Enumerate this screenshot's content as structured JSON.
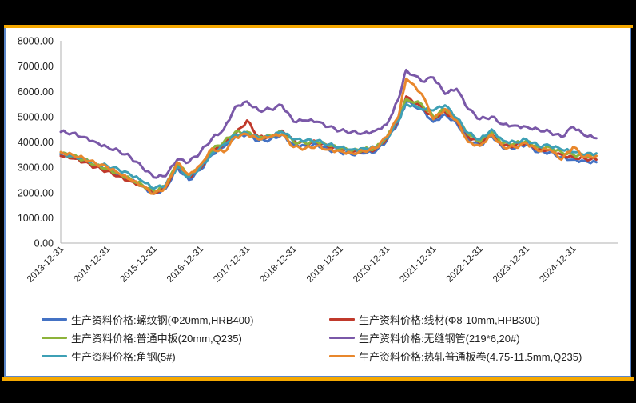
{
  "frame": {
    "accent_bar_color": "#f5a800",
    "border_color": "#5b86c8"
  },
  "chart_data": {
    "type": "line",
    "title": "",
    "xlabel": "",
    "ylabel": "",
    "ylim": [
      0,
      8000
    ],
    "yticks": [
      "0.00",
      "1000.00",
      "2000.00",
      "3000.00",
      "4000.00",
      "5000.00",
      "6000.00",
      "7000.00",
      "8000.00"
    ],
    "xticks": [
      "2013-12-31",
      "2014-12-31",
      "2015-12-31",
      "2016-12-31",
      "2017-12-31",
      "2018-12-31",
      "2019-12-31",
      "2020-12-31",
      "2021-12-31",
      "2022-12-31",
      "2023-12-31",
      "2024-12-31"
    ],
    "grid": false,
    "legend_position": "bottom",
    "x": [
      "2013-12",
      "2014-03",
      "2014-06",
      "2014-09",
      "2014-12",
      "2015-03",
      "2015-06",
      "2015-09",
      "2015-12",
      "2016-03",
      "2016-06",
      "2016-09",
      "2016-12",
      "2017-03",
      "2017-06",
      "2017-09",
      "2017-12",
      "2018-03",
      "2018-06",
      "2018-09",
      "2018-12",
      "2019-03",
      "2019-06",
      "2019-09",
      "2019-12",
      "2020-03",
      "2020-06",
      "2020-09",
      "2020-12",
      "2021-03",
      "2021-05",
      "2021-09",
      "2021-12",
      "2022-03",
      "2022-06",
      "2022-09",
      "2022-12",
      "2023-03",
      "2023-06",
      "2023-09",
      "2023-12",
      "2024-03",
      "2024-06",
      "2024-09",
      "2024-12",
      "2025-03",
      "2025-06"
    ],
    "series": [
      {
        "name": "生产资料价格:螺纹钢(Φ20mm,HRB400)",
        "color": "#4472c4",
        "values": [
          3500,
          3400,
          3250,
          3050,
          2900,
          2700,
          2500,
          2250,
          1950,
          2150,
          3000,
          2500,
          2900,
          3500,
          3800,
          4200,
          4300,
          4050,
          4100,
          4300,
          3900,
          3850,
          3900,
          3700,
          3600,
          3500,
          3550,
          3600,
          4050,
          4800,
          5600,
          5300,
          4800,
          5100,
          4750,
          4100,
          3850,
          4250,
          3750,
          3750,
          3900,
          3600,
          3600,
          3400,
          3300,
          3250,
          3200
        ]
      },
      {
        "name": "生产资料价格:线材(Φ8-10mm,HPB300)",
        "color": "#c0392b",
        "values": [
          3450,
          3350,
          3200,
          3000,
          2850,
          2650,
          2450,
          2300,
          2000,
          2200,
          3100,
          2600,
          2950,
          3600,
          3900,
          4300,
          4850,
          4200,
          4200,
          4450,
          4050,
          3950,
          4000,
          3800,
          3700,
          3600,
          3650,
          3700,
          4150,
          4900,
          5800,
          5400,
          4950,
          5200,
          4850,
          4200,
          3950,
          4300,
          3850,
          3850,
          4000,
          3700,
          3700,
          3500,
          3400,
          3350,
          3300
        ]
      },
      {
        "name": "生产资料价格:普通中板(20mm,Q235)",
        "color": "#8db33a",
        "values": [
          3550,
          3450,
          3300,
          3100,
          2950,
          2750,
          2550,
          2300,
          2050,
          2250,
          3150,
          2650,
          3000,
          3700,
          4000,
          4400,
          4400,
          4200,
          4250,
          4400,
          4000,
          3950,
          4000,
          3850,
          3750,
          3650,
          3700,
          3750,
          4200,
          5000,
          5700,
          5500,
          5000,
          5300,
          4900,
          4300,
          4000,
          4400,
          3950,
          3950,
          4050,
          3800,
          3800,
          3600,
          3500,
          3450,
          3450
        ]
      },
      {
        "name": "生产资料价格:无缝钢管(219*6,20#)",
        "color": "#7a58a8",
        "values": [
          4400,
          4350,
          4200,
          4000,
          3800,
          3650,
          3400,
          3000,
          2600,
          2650,
          3300,
          3200,
          3600,
          4150,
          4500,
          5400,
          5600,
          5250,
          5300,
          5450,
          4800,
          4850,
          4800,
          4600,
          4450,
          4400,
          4350,
          4450,
          4700,
          5700,
          6850,
          6400,
          6550,
          5900,
          6100,
          5300,
          4900,
          5000,
          4700,
          4650,
          4600,
          4500,
          4400,
          4200,
          4600,
          4250,
          4150
        ]
      },
      {
        "name": "生产资料价格:角钢(5#)",
        "color": "#3ea0b5",
        "values": [
          3550,
          3450,
          3350,
          3150,
          3050,
          2900,
          2700,
          2450,
          2150,
          2300,
          3000,
          2600,
          3000,
          3550,
          3900,
          4300,
          4350,
          4150,
          4200,
          4400,
          4100,
          4050,
          4050,
          3900,
          3800,
          3700,
          3750,
          3800,
          4150,
          4850,
          5500,
          5300,
          5250,
          5450,
          4950,
          4350,
          4100,
          4500,
          4050,
          4000,
          4100,
          3850,
          3850,
          3700,
          3600,
          3500,
          3550
        ]
      },
      {
        "name": "生产资料价格:热轧普通板卷(4.75-11.5mm,Q235)",
        "color": "#e8872c",
        "values": [
          3600,
          3500,
          3350,
          3150,
          3000,
          2750,
          2500,
          2250,
          1950,
          2200,
          3200,
          2700,
          3100,
          3750,
          3600,
          4200,
          4300,
          4100,
          4200,
          4300,
          3800,
          3750,
          3850,
          3700,
          3650,
          3550,
          3650,
          3750,
          4200,
          5000,
          6500,
          5900,
          4900,
          5300,
          4850,
          4000,
          3850,
          4300,
          3800,
          3800,
          3950,
          3650,
          3700,
          3300,
          3800,
          3400,
          3450
        ]
      }
    ]
  },
  "legend": [
    {
      "label": "生产资料价格:螺纹钢(Φ20mm,HRB400)",
      "color": "#4472c4"
    },
    {
      "label": "生产资料价格:线材(Φ8-10mm,HPB300)",
      "color": "#c0392b"
    },
    {
      "label": "生产资料价格:普通中板(20mm,Q235)",
      "color": "#8db33a"
    },
    {
      "label": "生产资料价格:无缝钢管(219*6,20#)",
      "color": "#7a58a8"
    },
    {
      "label": "生产资料价格:角钢(5#)",
      "color": "#3ea0b5"
    },
    {
      "label": "生产资料价格:热轧普通板卷(4.75-11.5mm,Q235)",
      "color": "#e8872c"
    }
  ]
}
